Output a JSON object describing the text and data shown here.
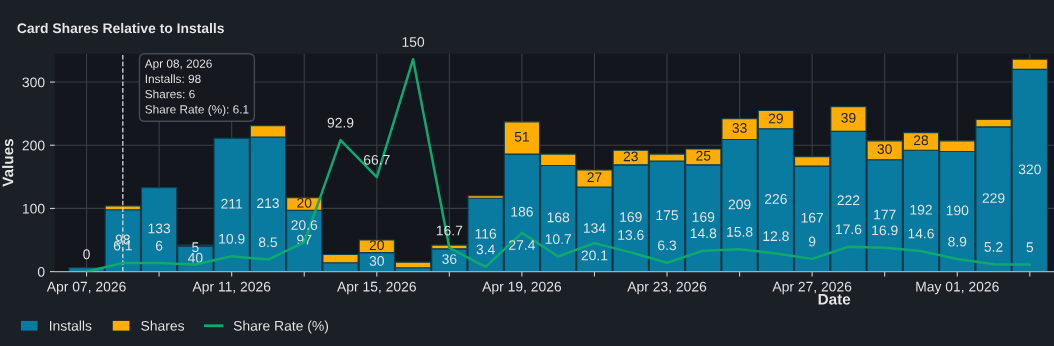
{
  "chart_data": {
    "type": "bar",
    "stacked": true,
    "title": "Card Shares Relative to Installs",
    "xlabel": "Date",
    "ylabel": "Values",
    "x": [
      "2026-04-07",
      "2026-04-08",
      "2026-04-09",
      "2026-04-10",
      "2026-04-11",
      "2026-04-12",
      "2026-04-13",
      "2026-04-14",
      "2026-04-15",
      "2026-04-16",
      "2026-04-17",
      "2026-04-18",
      "2026-04-19",
      "2026-04-20",
      "2026-04-21",
      "2026-04-22",
      "2026-04-23",
      "2026-04-24",
      "2026-04-25",
      "2026-04-26",
      "2026-04-27",
      "2026-04-28",
      "2026-04-29",
      "2026-04-30",
      "2026-05-01",
      "2026-05-02",
      "2026-05-03"
    ],
    "series": [
      {
        "name": "Installs",
        "color": "#0a7ba0",
        "values": [
          6,
          98,
          133,
          40,
          211,
          213,
          97,
          14,
          30,
          6,
          36,
          116,
          186,
          168,
          134,
          169,
          175,
          169,
          209,
          226,
          167,
          222,
          177,
          192,
          190,
          229,
          320
        ],
        "value_labels": [
          null,
          "98",
          "133",
          "40",
          "211",
          "213",
          "97",
          null,
          "30",
          null,
          "36",
          "116",
          "186",
          "168",
          "134",
          "169",
          "175",
          "169",
          "209",
          "226",
          "167",
          "222",
          "177",
          "192",
          "190",
          "229",
          "320"
        ]
      },
      {
        "name": "Shares",
        "color": "#ffad00",
        "values": [
          0,
          6,
          null,
          2,
          null,
          18,
          20,
          13,
          20,
          9,
          6,
          4,
          51,
          18,
          27,
          23,
          11,
          25,
          33,
          29,
          15,
          39,
          30,
          28,
          17,
          12,
          16
        ],
        "value_labels": [
          null,
          null,
          null,
          null,
          null,
          null,
          "20",
          null,
          "20",
          null,
          null,
          null,
          "51",
          null,
          "27",
          "23",
          null,
          "25",
          "33",
          "29",
          null,
          "39",
          "30",
          "28",
          null,
          null,
          null
        ]
      },
      {
        "name": "Share Rate (%)",
        "type": "line",
        "axis": "y2",
        "color": "#0fa86f",
        "values": [
          0,
          6.1,
          6,
          5,
          10.9,
          8.5,
          20.6,
          92.9,
          66.7,
          150,
          16.7,
          3.4,
          27.4,
          10.7,
          20.1,
          13.6,
          6.3,
          14.8,
          15.8,
          12.8,
          9,
          17.6,
          16.9,
          14.6,
          8.9,
          5.2,
          5
        ],
        "value_labels": [
          "0",
          "6.1",
          "6",
          "5",
          "10.9",
          "8.5",
          "20.6",
          "92.9",
          "66.7",
          "150",
          "16.7",
          "3.4",
          "27.4",
          "10.7",
          "20.1",
          "13.6",
          "6.3",
          "14.8",
          "15.8",
          "12.8",
          "9",
          "17.6",
          "16.9",
          "14.6",
          "8.9",
          "5.2",
          "5"
        ]
      }
    ],
    "xlim": [
      "2026-04-06T03:00",
      "2026-05-03T16:00"
    ],
    "xticks": [
      {
        "value": "2026-04-07",
        "label": "Apr 07, 2026"
      },
      {
        "value": "2026-04-09",
        "label": null
      },
      {
        "value": "2026-04-11",
        "label": "Apr 11, 2026"
      },
      {
        "value": "2026-04-13",
        "label": null
      },
      {
        "value": "2026-04-15",
        "label": "Apr 15, 2026"
      },
      {
        "value": "2026-04-17",
        "label": null
      },
      {
        "value": "2026-04-19",
        "label": "Apr 19, 2026"
      },
      {
        "value": "2026-04-21",
        "label": null
      },
      {
        "value": "2026-04-23",
        "label": "Apr 23, 2026"
      },
      {
        "value": "2026-04-25",
        "label": null
      },
      {
        "value": "2026-04-27",
        "label": "Apr 27, 2026"
      },
      {
        "value": "2026-04-29",
        "label": null
      },
      {
        "value": "2026-05-01",
        "label": "May 01, 2026"
      },
      {
        "value": "2026-05-03",
        "label": null
      }
    ],
    "ylim": [
      0,
      345
    ],
    "yticks": [
      0,
      100,
      200,
      300
    ],
    "y2lim": [
      0,
      154
    ],
    "ref_lines": [
      {
        "axis": "x",
        "value": "2026-04-08",
        "label": null,
        "color": "#dddddd",
        "line_style": "dashed"
      }
    ],
    "annotations": [
      "Apr 08, 2026\nInstalls: 98\nShares: 6\nShare Rate (%): 6.1"
    ],
    "grid": true,
    "legend": "bottom left"
  }
}
